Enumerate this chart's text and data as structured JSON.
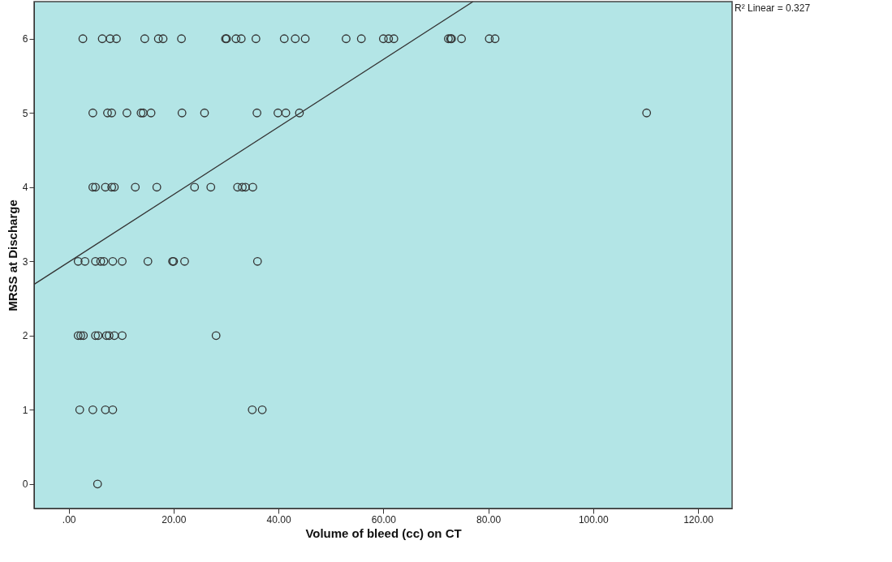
{
  "chart_data": {
    "type": "scatter",
    "xlabel": "Volume of bleed (cc) on CT",
    "ylabel": "MRSS at Discharge",
    "annotations": [
      "R² Linear = 0.327"
    ],
    "marker": "circle",
    "xlim": [
      -6.6,
      126.5
    ],
    "ylim": [
      -0.33,
      6.5
    ],
    "xticks": [
      {
        "value": 0,
        "label": ".00"
      },
      {
        "value": 20,
        "label": "20.00"
      },
      {
        "value": 40,
        "label": "40.00"
      },
      {
        "value": 60,
        "label": "60.00"
      },
      {
        "value": 80,
        "label": "80.00"
      },
      {
        "value": 100,
        "label": "100.00"
      },
      {
        "value": 120,
        "label": "120.00"
      }
    ],
    "yticks": [
      0,
      1,
      2,
      3,
      4,
      5,
      6
    ],
    "grid": false,
    "series": [
      {
        "color": "#333333",
        "x": [
          2.7,
          6.4,
          7.9,
          9.1,
          14.5,
          17.1,
          18.0,
          21.5,
          29.9,
          30.1,
          31.9,
          32.9,
          35.7,
          41.1,
          43.2,
          45.1,
          52.9,
          55.8,
          60.0,
          61.0,
          62.0,
          72.4,
          72.8,
          73.0,
          74.9,
          80.2,
          81.3,
          4.6,
          7.4,
          8.2,
          11.1,
          13.8,
          14.2,
          15.7,
          21.6,
          25.9,
          35.9,
          39.9,
          41.4,
          44.0,
          110.2,
          4.6,
          5.1,
          7.0,
          8.2,
          8.7,
          12.7,
          16.8,
          24.0,
          27.1,
          32.2,
          33.1,
          33.7,
          35.1,
          1.8,
          3.1,
          5.1,
          6.1,
          6.7,
          8.4,
          10.2,
          15.1,
          19.8,
          20.0,
          22.1,
          36.0,
          1.8,
          2.3,
          2.8,
          5.1,
          5.6,
          7.2,
          7.7,
          8.7,
          10.2,
          28.1,
          2.1,
          4.6,
          7.0,
          8.4,
          35.0,
          36.9,
          5.5
        ],
        "values": [
          6,
          6,
          6,
          6,
          6,
          6,
          6,
          6,
          6,
          6,
          6,
          6,
          6,
          6,
          6,
          6,
          6,
          6,
          6,
          6,
          6,
          6,
          6,
          6,
          6,
          6,
          6,
          5,
          5,
          5,
          5,
          5,
          5,
          5,
          5,
          5,
          5,
          5,
          5,
          5,
          5,
          4,
          4,
          4,
          4,
          4,
          4,
          4,
          4,
          4,
          4,
          4,
          4,
          4,
          3,
          3,
          3,
          3,
          3,
          3,
          3,
          3,
          3,
          3,
          3,
          3,
          2,
          2,
          2,
          2,
          2,
          2,
          2,
          2,
          2,
          2,
          1,
          1,
          1,
          1,
          1,
          1,
          0
        ]
      },
      {
        "type": "line",
        "marker": "none",
        "line_style": "solid",
        "color": "#333333",
        "x": [
          -6.6,
          77.1
        ],
        "values": [
          2.69,
          6.5
        ]
      }
    ]
  }
}
